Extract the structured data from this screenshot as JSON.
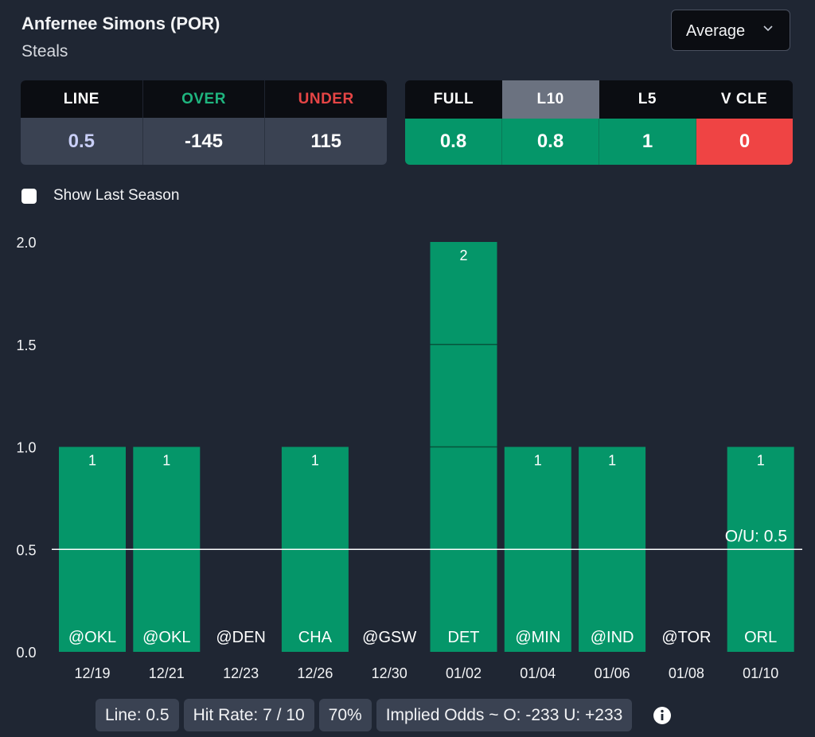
{
  "header": {
    "player": "Anfernee Simons (POR)",
    "stat": "Steals",
    "dropdown_value": "Average",
    "dropdown_icon": "chevron-down-icon"
  },
  "odds": {
    "headers": [
      {
        "label": "LINE",
        "color": "#ffffff"
      },
      {
        "label": "OVER",
        "color": "#1fb57f"
      },
      {
        "label": "UNDER",
        "color": "#e64545"
      }
    ],
    "values": [
      {
        "value": "0.5",
        "color": "#c9cff7"
      },
      {
        "value": "-145",
        "color": "#ffffff"
      },
      {
        "value": "115",
        "color": "#ffffff"
      }
    ]
  },
  "splits": {
    "headers": [
      "FULL",
      "L10",
      "L5",
      "V CLE"
    ],
    "active": "L10",
    "values": [
      "0.8",
      "0.8",
      "1",
      "0"
    ],
    "colors": [
      "#059669",
      "#059669",
      "#059669",
      "#ef4444"
    ]
  },
  "options": {
    "show_last_season": "Show Last Season",
    "show_last_season_checked": false
  },
  "chart_data": {
    "type": "bar",
    "categories": [
      "12/19",
      "12/21",
      "12/23",
      "12/26",
      "12/30",
      "01/02",
      "01/04",
      "01/06",
      "01/08",
      "01/10"
    ],
    "opponents": [
      "@OKL",
      "@OKL",
      "@DEN",
      "CHA",
      "@GSW",
      "DET",
      "@MIN",
      "@IND",
      "@TOR",
      "ORL"
    ],
    "values": [
      1,
      1,
      0,
      1,
      0,
      2,
      1,
      1,
      0,
      1
    ],
    "ylim": [
      0,
      2
    ],
    "yticks": [
      "0.0",
      "0.5",
      "1.0",
      "1.5",
      "2.0"
    ],
    "line_value": 0.5,
    "line_label": "O/U: 0.5",
    "bar_color": "#059669",
    "grid": false
  },
  "footer": {
    "line": "Line: 0.5",
    "hit_rate": "Hit Rate: 7 / 10",
    "hit_pct": "70%",
    "implied": "Implied Odds ~ O: -233 U: +233",
    "info_icon": "info-icon"
  }
}
